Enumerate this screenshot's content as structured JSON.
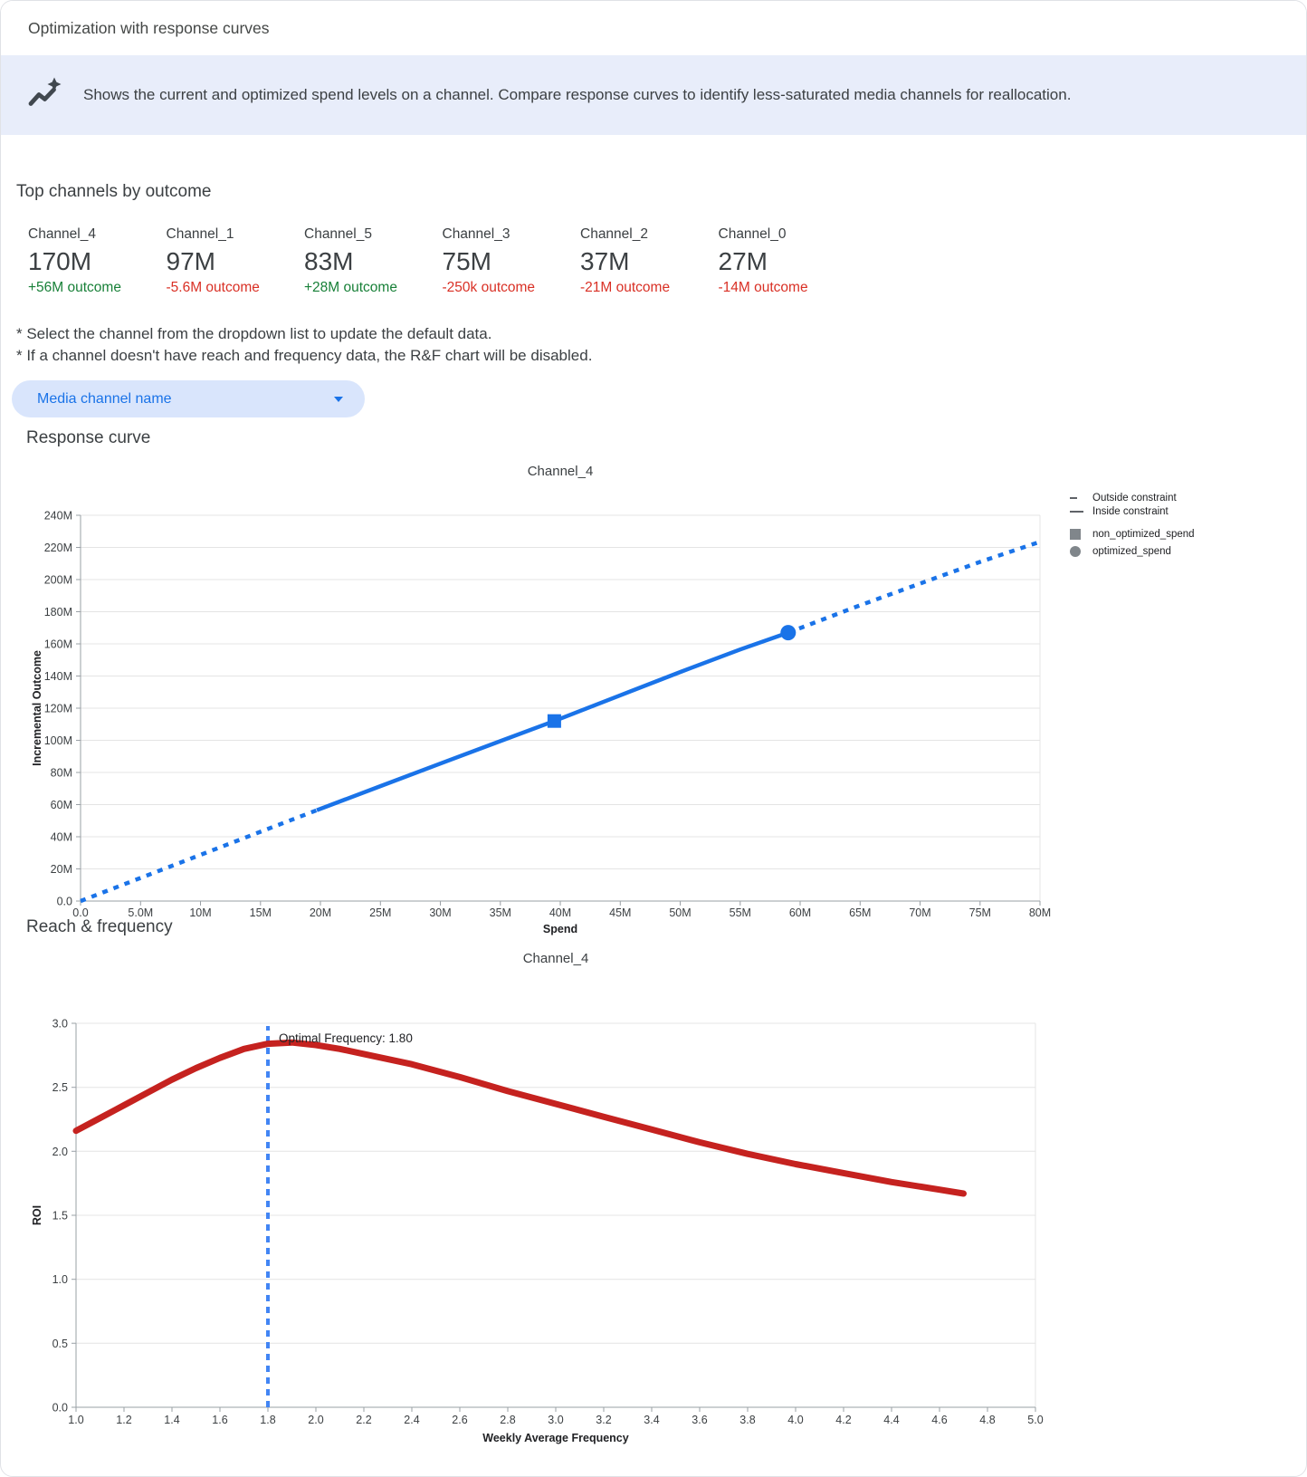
{
  "header": {
    "title": "Optimization with response curves"
  },
  "banner": {
    "icon": "insights-icon",
    "text": "Shows the current and optimized spend levels on a channel. Compare response curves to identify less-saturated media channels for reallocation."
  },
  "sections": {
    "top_channels": "Top channels by outcome",
    "response_curve": "Response curve",
    "reach_frequency": "Reach & frequency"
  },
  "channels": {
    "colors": {
      "positive": "#188038",
      "negative": "#d93025"
    },
    "items": [
      {
        "name": "Channel_4",
        "value": "170M",
        "outcome": "+56M outcome",
        "direction": "positive"
      },
      {
        "name": "Channel_1",
        "value": "97M",
        "outcome": "-5.6M outcome",
        "direction": "negative"
      },
      {
        "name": "Channel_5",
        "value": "83M",
        "outcome": "+28M outcome",
        "direction": "positive"
      },
      {
        "name": "Channel_3",
        "value": "75M",
        "outcome": "-250k outcome",
        "direction": "negative"
      },
      {
        "name": "Channel_2",
        "value": "37M",
        "outcome": "-21M outcome",
        "direction": "negative"
      },
      {
        "name": "Channel_0",
        "value": "27M",
        "outcome": "-14M outcome",
        "direction": "negative"
      }
    ]
  },
  "notes": {
    "line1": "* Select the channel from the dropdown list to update the default data.",
    "line2": "* If a channel doesn't have reach and frequency data, the R&F chart will be disabled."
  },
  "dropdown": {
    "label": "Media channel name"
  },
  "chart_data": [
    {
      "id": "response",
      "type": "line",
      "title": "Channel_4",
      "xlabel": "Spend",
      "ylabel": "Incremental Outcome",
      "xlim": [
        0,
        80
      ],
      "ylim": [
        0,
        240
      ],
      "units": "millions",
      "grid": "horizontal",
      "legend_position": "right",
      "x_ticks": [
        {
          "v": 0,
          "label": "0.0"
        },
        {
          "v": 5,
          "label": "5.0M"
        },
        {
          "v": 10,
          "label": "10M"
        },
        {
          "v": 15,
          "label": "15M"
        },
        {
          "v": 20,
          "label": "20M"
        },
        {
          "v": 25,
          "label": "25M"
        },
        {
          "v": 30,
          "label": "30M"
        },
        {
          "v": 35,
          "label": "35M"
        },
        {
          "v": 40,
          "label": "40M"
        },
        {
          "v": 45,
          "label": "45M"
        },
        {
          "v": 50,
          "label": "50M"
        },
        {
          "v": 55,
          "label": "55M"
        },
        {
          "v": 60,
          "label": "60M"
        },
        {
          "v": 65,
          "label": "65M"
        },
        {
          "v": 70,
          "label": "70M"
        },
        {
          "v": 75,
          "label": "75M"
        },
        {
          "v": 80,
          "label": "80M"
        }
      ],
      "y_ticks": [
        {
          "v": 0,
          "label": "0.0"
        },
        {
          "v": 20,
          "label": "20M"
        },
        {
          "v": 40,
          "label": "40M"
        },
        {
          "v": 60,
          "label": "60M"
        },
        {
          "v": 80,
          "label": "80M"
        },
        {
          "v": 100,
          "label": "100M"
        },
        {
          "v": 120,
          "label": "120M"
        },
        {
          "v": 140,
          "label": "140M"
        },
        {
          "v": 160,
          "label": "160M"
        },
        {
          "v": 180,
          "label": "180M"
        },
        {
          "v": 200,
          "label": "200M"
        },
        {
          "v": 220,
          "label": "220M"
        },
        {
          "v": 240,
          "label": "240M"
        }
      ],
      "legend": [
        {
          "label": "Outside constraint",
          "marker": "dash-short"
        },
        {
          "label": "Inside constraint",
          "marker": "dash-long"
        },
        {
          "label": "non_optimized_spend",
          "marker": "square"
        },
        {
          "label": "optimized_spend",
          "marker": "circle"
        }
      ],
      "series": [
        {
          "name": "Outside constraint (below)",
          "color": "#1a73e8",
          "width": 4.5,
          "dash": "6 7",
          "points": [
            [
              0,
              0
            ],
            [
              4,
              11.5
            ],
            [
              8,
              23
            ],
            [
              12,
              34.5
            ],
            [
              16,
              46
            ],
            [
              19.7,
              56.5
            ]
          ]
        },
        {
          "name": "Inside constraint",
          "color": "#1a73e8",
          "width": 4.5,
          "points": [
            [
              19.7,
              56.5
            ],
            [
              25,
              71.5
            ],
            [
              30,
              85.5
            ],
            [
              35,
              99.5
            ],
            [
              39.5,
              112
            ],
            [
              45,
              128
            ],
            [
              50,
              142.5
            ],
            [
              55,
              156.5
            ],
            [
              59,
              167
            ]
          ]
        },
        {
          "name": "Outside constraint (above)",
          "color": "#1a73e8",
          "width": 4.5,
          "dash": "6 7",
          "points": [
            [
              59,
              167
            ],
            [
              65,
              184
            ],
            [
              70,
              197.5
            ],
            [
              75,
              211
            ],
            [
              80,
              223.5
            ]
          ]
        }
      ],
      "markers": [
        {
          "name": "non_optimized_spend",
          "shape": "square",
          "x": 39.5,
          "y": 112,
          "size": 15,
          "color": "#1a73e8"
        },
        {
          "name": "optimized_spend",
          "shape": "circle",
          "x": 59,
          "y": 167,
          "r": 8.5,
          "color": "#1a73e8"
        }
      ]
    },
    {
      "id": "rf",
      "type": "line",
      "title": "Channel_4",
      "xlabel": "Weekly Average Frequency",
      "ylabel": "ROI",
      "xlim": [
        1.0,
        5.0
      ],
      "ylim": [
        0,
        3.0
      ],
      "grid": "horizontal",
      "x_ticks": [
        {
          "v": 1.0,
          "label": "1.0"
        },
        {
          "v": 1.2,
          "label": "1.2"
        },
        {
          "v": 1.4,
          "label": "1.4"
        },
        {
          "v": 1.6,
          "label": "1.6"
        },
        {
          "v": 1.8,
          "label": "1.8"
        },
        {
          "v": 2.0,
          "label": "2.0"
        },
        {
          "v": 2.2,
          "label": "2.2"
        },
        {
          "v": 2.4,
          "label": "2.4"
        },
        {
          "v": 2.6,
          "label": "2.6"
        },
        {
          "v": 2.8,
          "label": "2.8"
        },
        {
          "v": 3.0,
          "label": "3.0"
        },
        {
          "v": 3.2,
          "label": "3.2"
        },
        {
          "v": 3.4,
          "label": "3.4"
        },
        {
          "v": 3.6,
          "label": "3.6"
        },
        {
          "v": 3.8,
          "label": "3.8"
        },
        {
          "v": 4.0,
          "label": "4.0"
        },
        {
          "v": 4.2,
          "label": "4.2"
        },
        {
          "v": 4.4,
          "label": "4.4"
        },
        {
          "v": 4.6,
          "label": "4.6"
        },
        {
          "v": 4.8,
          "label": "4.8"
        },
        {
          "v": 5.0,
          "label": "5.0"
        }
      ],
      "y_ticks": [
        {
          "v": 0,
          "label": "0.0"
        },
        {
          "v": 0.5,
          "label": "0.5"
        },
        {
          "v": 1.0,
          "label": "1.0"
        },
        {
          "v": 1.5,
          "label": "1.5"
        },
        {
          "v": 2.0,
          "label": "2.0"
        },
        {
          "v": 2.5,
          "label": "2.5"
        },
        {
          "v": 3.0,
          "label": "3.0"
        }
      ],
      "series": [
        {
          "name": "ROI by frequency",
          "color": "#c5221f",
          "width": 7,
          "cap": "round",
          "points": [
            [
              1.0,
              2.16
            ],
            [
              1.1,
              2.26
            ],
            [
              1.2,
              2.36
            ],
            [
              1.3,
              2.46
            ],
            [
              1.4,
              2.56
            ],
            [
              1.5,
              2.65
            ],
            [
              1.6,
              2.73
            ],
            [
              1.7,
              2.8
            ],
            [
              1.8,
              2.84
            ],
            [
              1.9,
              2.85
            ],
            [
              2.0,
              2.83
            ],
            [
              2.1,
              2.8
            ],
            [
              2.2,
              2.76
            ],
            [
              2.4,
              2.68
            ],
            [
              2.6,
              2.58
            ],
            [
              2.8,
              2.47
            ],
            [
              3.0,
              2.37
            ],
            [
              3.2,
              2.27
            ],
            [
              3.4,
              2.17
            ],
            [
              3.6,
              2.07
            ],
            [
              3.8,
              1.98
            ],
            [
              4.0,
              1.9
            ],
            [
              4.2,
              1.83
            ],
            [
              4.4,
              1.76
            ],
            [
              4.6,
              1.7
            ],
            [
              4.7,
              1.67
            ]
          ]
        }
      ],
      "vline": {
        "x": 1.8,
        "color": "#4285f4",
        "width": 4,
        "dash": "7 6",
        "label": "Optimal Frequency: 1.80"
      }
    }
  ]
}
